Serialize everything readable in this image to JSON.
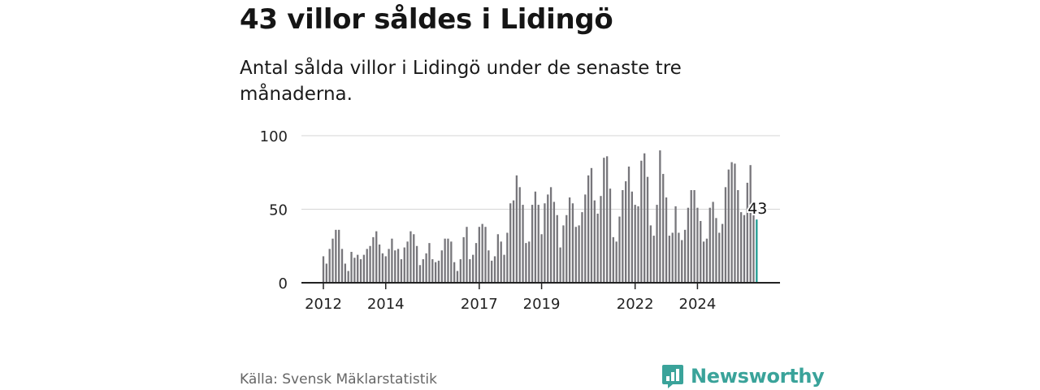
{
  "title": "43 villor såldes i Lidingö",
  "subtitle": "Antal sålda villor i Lidingö under de senaste tre månaderna.",
  "source": "Källa: Svensk Mäklarstatistik",
  "brand": {
    "name": "Newsworthy",
    "icon": "newsworthy-logo-icon"
  },
  "colors": {
    "bar": "#77767b",
    "highlight": "#1f9b91",
    "axis": "#222222",
    "grid": "#d6d6d6",
    "brand": "#3aa39a"
  },
  "chart_data": {
    "type": "bar",
    "title": "Antal sålda villor i Lidingö under de senaste tre månaderna.",
    "xlabel": "",
    "ylabel": "",
    "ylim": [
      0,
      100
    ],
    "yticks": [
      0,
      50,
      100
    ],
    "xticks": [
      {
        "label": "2012",
        "index": 0
      },
      {
        "label": "2014",
        "index": 20
      },
      {
        "label": "2017",
        "index": 50
      },
      {
        "label": "2019",
        "index": 70
      },
      {
        "label": "2022",
        "index": 100
      },
      {
        "label": "2024",
        "index": 120
      }
    ],
    "values": [
      18,
      13,
      23,
      30,
      36,
      36,
      23,
      13,
      8,
      21,
      17,
      19,
      16,
      19,
      23,
      25,
      31,
      35,
      26,
      20,
      18,
      23,
      30,
      22,
      23,
      16,
      24,
      28,
      35,
      33,
      25,
      12,
      16,
      20,
      27,
      16,
      14,
      15,
      22,
      30,
      30,
      28,
      14,
      8,
      16,
      31,
      38,
      16,
      19,
      27,
      38,
      40,
      38,
      22,
      15,
      18,
      33,
      28,
      19,
      34,
      54,
      56,
      73,
      65,
      53,
      27,
      28,
      53,
      62,
      53,
      33,
      54,
      60,
      65,
      55,
      46,
      24,
      39,
      46,
      58,
      54,
      38,
      39,
      48,
      60,
      73,
      78,
      56,
      47,
      59,
      85,
      86,
      64,
      31,
      28,
      45,
      63,
      69,
      79,
      62,
      53,
      52,
      83,
      88,
      72,
      39,
      32,
      53,
      90,
      74,
      58,
      32,
      34,
      52,
      34,
      29,
      36,
      51,
      63,
      63,
      51,
      42,
      28,
      30,
      51,
      55,
      44,
      34,
      40,
      65,
      77,
      82,
      81,
      63,
      48,
      46,
      68,
      80,
      47,
      43
    ],
    "highlight_index": 139,
    "highlight_label": "43"
  }
}
